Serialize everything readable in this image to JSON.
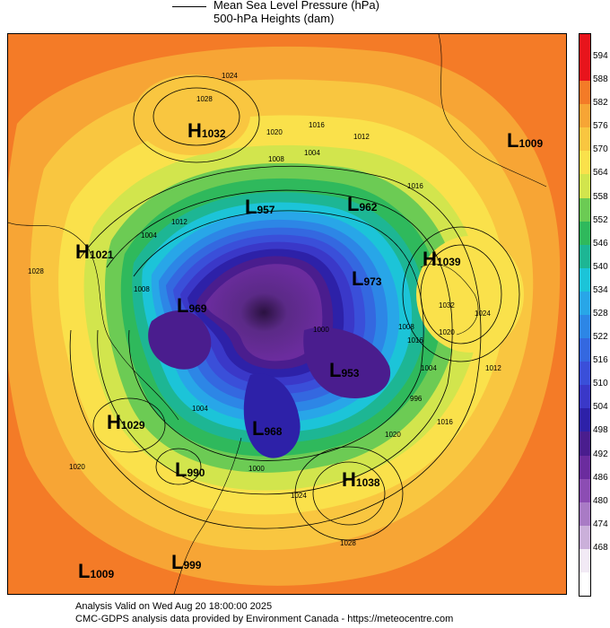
{
  "legend": {
    "line_label_1": "Mean Sea Level Pressure (hPa)",
    "line_label_2": "500-hPa Heights (dam)"
  },
  "colorbar": {
    "levels": [
      "594",
      "588",
      "582",
      "576",
      "570",
      "564",
      "558",
      "552",
      "546",
      "540",
      "534",
      "528",
      "522",
      "516",
      "510",
      "504",
      "498",
      "492",
      "486",
      "480",
      "474",
      "468"
    ],
    "colors": [
      "#e8141c",
      "#f47b27",
      "#f7a535",
      "#f9c640",
      "#fae14b",
      "#d2e54d",
      "#6ccb54",
      "#2fb95c",
      "#1db694",
      "#1cc4d8",
      "#28a6e8",
      "#2d86e6",
      "#3468e0",
      "#3a4fd9",
      "#3a38c8",
      "#2d21a8",
      "#4a1d8e",
      "#6b2c9e",
      "#8c4db3",
      "#a97bc5",
      "#cbb0da",
      "#f2eaf5"
    ],
    "top_cap": "#e8141c",
    "bottom_cap": "#ffffff"
  },
  "systems": [
    {
      "type": "H",
      "value": "1032"
    },
    {
      "type": "L",
      "value": "1009"
    },
    {
      "type": "L",
      "value": "957"
    },
    {
      "type": "L",
      "value": "962"
    },
    {
      "type": "H",
      "value": "1021"
    },
    {
      "type": "H",
      "value": "1039"
    },
    {
      "type": "L",
      "value": "973"
    },
    {
      "type": "L",
      "value": "969"
    },
    {
      "type": "L",
      "value": "953"
    },
    {
      "type": "H",
      "value": "1029"
    },
    {
      "type": "L",
      "value": "968"
    },
    {
      "type": "L",
      "value": "990"
    },
    {
      "type": "H",
      "value": "1038"
    },
    {
      "type": "L",
      "value": "1009"
    },
    {
      "type": "L",
      "value": "999"
    }
  ],
  "isobar_labels": [
    "1024",
    "1028",
    "1020",
    "1016",
    "1012",
    "1008",
    "1004",
    "1016",
    "1012",
    "1004",
    "1028",
    "1032",
    "1024",
    "1020",
    "1016",
    "1012",
    "1008",
    "1004",
    "1000",
    "996",
    "1016",
    "1020",
    "1024",
    "1028",
    "1020",
    "1008",
    "1004",
    "1000"
  ],
  "footer": {
    "line1": "Analysis Valid on Wed Aug 20 18:00:00 2025",
    "line2": "CMC-GDPS analysis data provided by Environment Canada - https://meteocentre.com"
  }
}
